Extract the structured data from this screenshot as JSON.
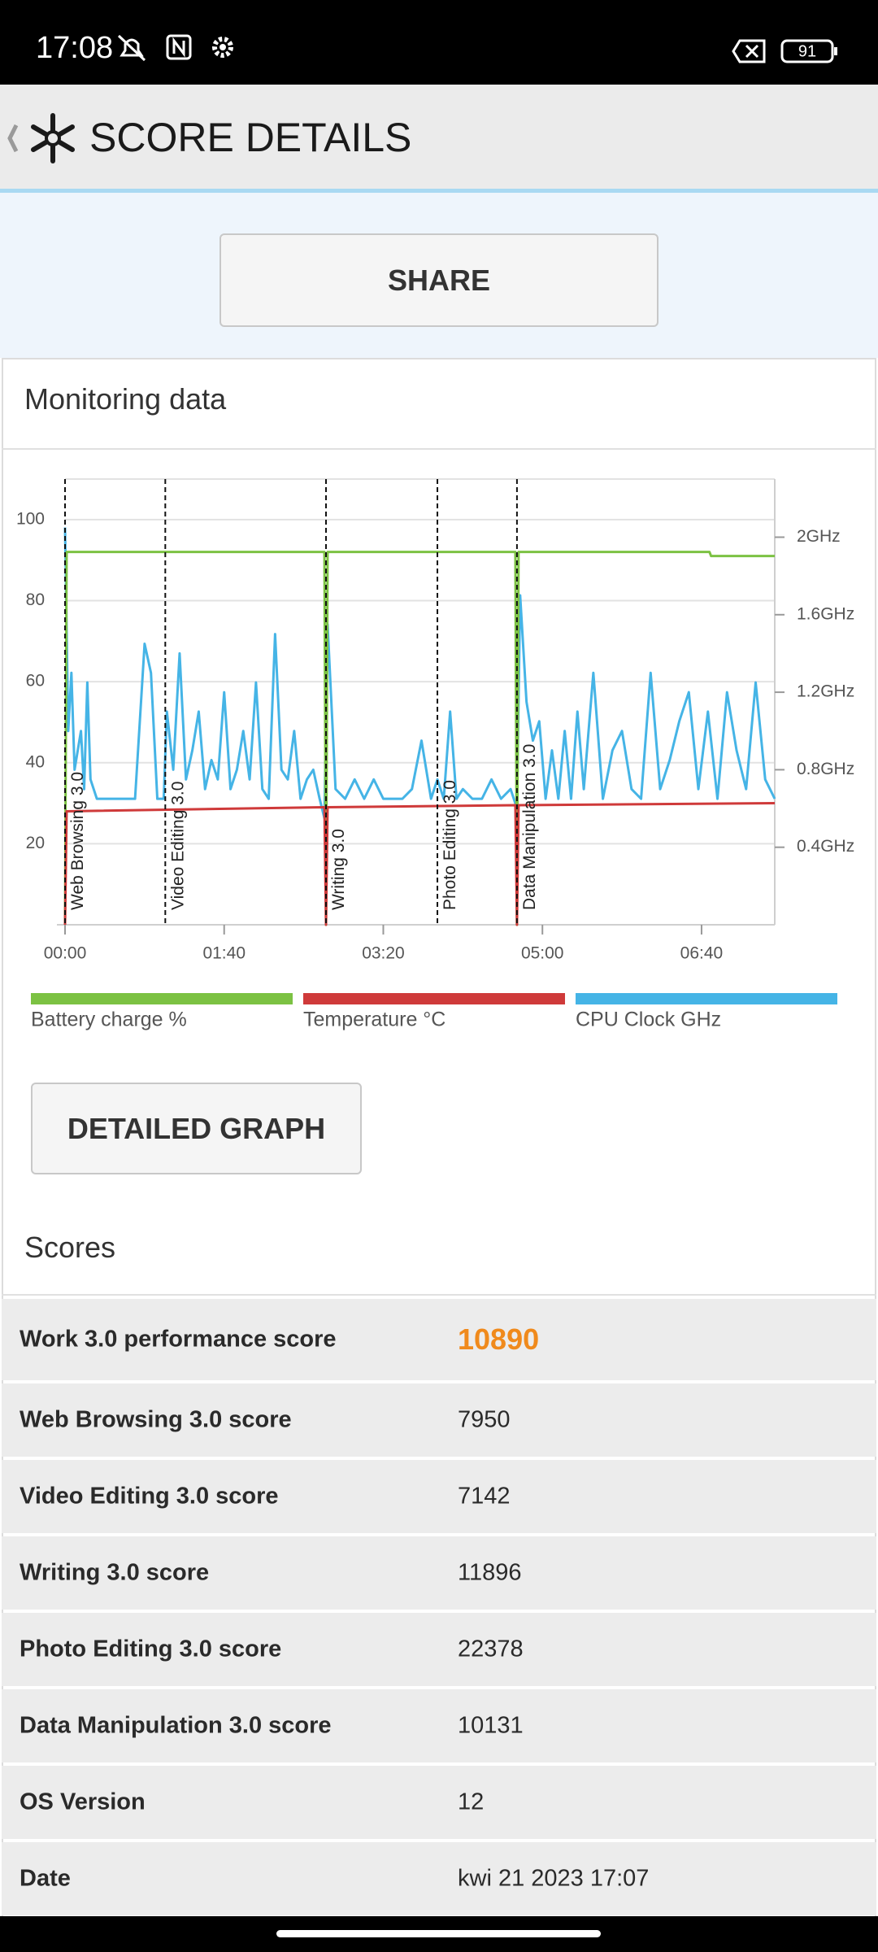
{
  "status_bar": {
    "time": "17:08",
    "battery": "91"
  },
  "header": {
    "title": "SCORE DETAILS"
  },
  "share_button": "SHARE",
  "monitoring": {
    "title": "Monitoring data",
    "detailed_graph_button": "DETAILED GRAPH"
  },
  "chart_data": {
    "type": "line",
    "xlim": [
      0,
      446
    ],
    "xticks": [
      {
        "value": 0,
        "label": "00:00"
      },
      {
        "value": 100,
        "label": "01:40"
      },
      {
        "value": 200,
        "label": "03:20"
      },
      {
        "value": 300,
        "label": "05:00"
      },
      {
        "value": 400,
        "label": "06:40"
      }
    ],
    "ylim": [
      0,
      110
    ],
    "yticks": [
      20,
      40,
      60,
      80,
      100
    ],
    "y2lim": [
      0,
      2.3
    ],
    "y2ticks": [
      {
        "value": 0.4,
        "label": "0.4GHz"
      },
      {
        "value": 0.8,
        "label": "0.8GHz"
      },
      {
        "value": 1.2,
        "label": "1.2GHz"
      },
      {
        "value": 1.6,
        "label": "1.6GHz"
      },
      {
        "value": 2,
        "label": "2GHz"
      }
    ],
    "grid": true,
    "annotations": [
      {
        "x": 0,
        "label": "Web Browsing 3.0"
      },
      {
        "x": 63,
        "label": "Video Editing 3.0"
      },
      {
        "x": 164,
        "label": "Writing 3.0"
      },
      {
        "x": 234,
        "label": "Photo Editing 3.0"
      },
      {
        "x": 284,
        "label": "Data Manipulation 3.0"
      }
    ],
    "series": [
      {
        "name": "Battery charge %",
        "color": "#7cc243",
        "x": [
          0,
          1,
          163,
          164,
          165,
          283,
          284,
          285,
          405,
          406,
          446
        ],
        "values": [
          0,
          92,
          92,
          0,
          92,
          92,
          0,
          92,
          92,
          91,
          91
        ]
      },
      {
        "name": "Temperature °C",
        "color": "#cf3a3a",
        "x": [
          0,
          1,
          163,
          164,
          165,
          283,
          284,
          285,
          446
        ],
        "values": [
          0,
          28,
          29,
          0,
          29,
          29.5,
          0,
          29.5,
          30
        ]
      },
      {
        "name": "CPU Clock GHz",
        "color": "#45b4e6",
        "axis": "y2",
        "x": [
          0,
          2,
          4,
          6,
          8,
          10,
          12,
          14,
          16,
          20,
          26,
          32,
          38,
          44,
          50,
          54,
          58,
          62,
          64,
          68,
          72,
          76,
          80,
          84,
          88,
          92,
          96,
          100,
          104,
          108,
          112,
          116,
          120,
          124,
          128,
          132,
          136,
          140,
          144,
          148,
          152,
          156,
          160,
          163,
          165,
          170,
          176,
          182,
          188,
          194,
          200,
          206,
          212,
          218,
          224,
          230,
          234,
          238,
          242,
          246,
          250,
          256,
          262,
          268,
          274,
          280,
          284,
          286,
          290,
          294,
          298,
          302,
          306,
          310,
          314,
          318,
          322,
          326,
          332,
          338,
          344,
          350,
          356,
          362,
          368,
          374,
          380,
          386,
          392,
          398,
          404,
          410,
          416,
          422,
          428,
          434,
          440,
          446
        ],
        "values": [
          2.05,
          1.0,
          1.3,
          0.8,
          0.9,
          1.0,
          0.7,
          1.25,
          0.75,
          0.65,
          0.65,
          0.65,
          0.65,
          0.65,
          1.45,
          1.3,
          0.65,
          0.65,
          1.1,
          0.8,
          1.4,
          0.75,
          0.9,
          1.1,
          0.7,
          0.85,
          0.75,
          1.2,
          0.7,
          0.8,
          1.0,
          0.75,
          1.25,
          0.7,
          0.65,
          1.5,
          0.8,
          0.75,
          1.0,
          0.65,
          0.75,
          0.8,
          0.65,
          0.55,
          1.55,
          0.7,
          0.65,
          0.75,
          0.65,
          0.75,
          0.65,
          0.65,
          0.65,
          0.7,
          0.95,
          0.65,
          0.75,
          0.65,
          1.1,
          0.65,
          0.7,
          0.65,
          0.65,
          0.75,
          0.65,
          0.7,
          0.6,
          1.7,
          1.15,
          0.95,
          1.05,
          0.65,
          0.9,
          0.65,
          1.0,
          0.65,
          1.1,
          0.7,
          1.3,
          0.65,
          0.9,
          1.0,
          0.7,
          0.65,
          1.3,
          0.7,
          0.85,
          1.05,
          1.2,
          0.7,
          1.1,
          0.65,
          1.2,
          0.9,
          0.7,
          1.25,
          0.75,
          0.65
        ]
      }
    ]
  },
  "scores": {
    "title": "Scores",
    "rows": [
      [
        "Work 3.0 performance score",
        10890
      ],
      [
        "Web Browsing 3.0 score",
        7950
      ],
      [
        "Video Editing 3.0 score",
        7142
      ],
      [
        "Writing 3.0 score",
        11896
      ],
      [
        "Photo Editing 3.0 score",
        22378
      ],
      [
        "Data Manipulation 3.0 score",
        10131
      ],
      [
        "OS Version",
        12
      ],
      [
        "Date",
        "kwi 21 2023 17:07"
      ]
    ]
  }
}
